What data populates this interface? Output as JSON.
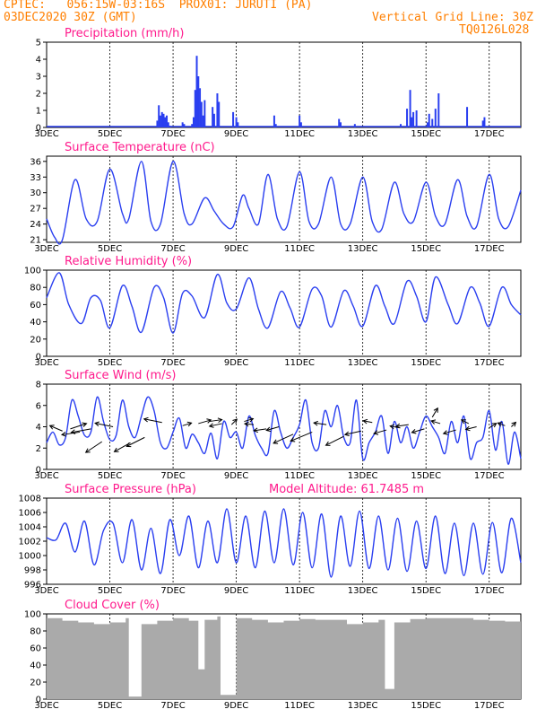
{
  "header": {
    "line1_left": "CPTEC:",
    "coords": "056:15W-03:16S",
    "location": "PROX01: JURUTI (PA)",
    "init": "03DEC2020 30Z (GMT)",
    "grid_note": "Vertical Grid Line: 30Z",
    "code": "TQ0126L028"
  },
  "date_axis": {
    "labels": [
      "3DEC",
      "5DEC",
      "7DEC",
      "9DEC",
      "11DEC",
      "13DEC",
      "15DEC",
      "17DEC"
    ],
    "start_day": 3,
    "end_day": 18
  },
  "colors": {
    "line": "#2a3ff0",
    "title": "#ff1a8c",
    "header": "#ff7f00",
    "cloud": "#aaaaaa"
  },
  "chart_data": [
    {
      "type": "bar",
      "title": "Precipitation (mm/h)",
      "ylim": [
        0,
        5
      ],
      "yticks": [
        0,
        1,
        2,
        3,
        4,
        5
      ],
      "x": [
        6.5,
        6.55,
        6.6,
        6.65,
        6.7,
        6.75,
        6.8,
        6.85,
        6.9,
        7.3,
        7.35,
        7.6,
        7.65,
        7.7,
        7.75,
        7.8,
        7.85,
        7.9,
        7.95,
        8.0,
        8.25,
        8.3,
        8.4,
        8.45,
        8.9,
        9.0,
        9.05,
        10.2,
        10.25,
        11.0,
        11.05,
        12.25,
        12.3,
        12.75,
        14.2,
        14.4,
        14.5,
        14.55,
        14.6,
        14.7,
        15.05,
        15.1,
        15.2,
        15.3,
        15.4,
        16.3,
        16.8,
        16.85
      ],
      "values": [
        0.4,
        1.3,
        0.7,
        0.9,
        0.8,
        0.6,
        0.7,
        0.3,
        0.1,
        0.3,
        0.2,
        0.2,
        0.6,
        2.2,
        4.2,
        3.0,
        2.3,
        1.5,
        0.7,
        1.6,
        1.2,
        0.8,
        2.0,
        1.5,
        0.9,
        0.6,
        0.3,
        0.7,
        0.2,
        0.7,
        0.3,
        0.5,
        0.3,
        0.2,
        0.2,
        1.1,
        2.2,
        0.6,
        0.9,
        1.0,
        0.3,
        0.8,
        0.5,
        1.1,
        2.0,
        1.2,
        0.4,
        0.6
      ]
    },
    {
      "type": "line",
      "title": "Surface Temperature (nC)",
      "ylim": [
        20.5,
        37
      ],
      "yticks": [
        21,
        24,
        27,
        30,
        33,
        36
      ],
      "x": [
        3.0,
        3.25,
        3.5,
        3.9,
        4.25,
        4.6,
        5.0,
        5.4,
        5.6,
        6.0,
        6.3,
        6.6,
        7.0,
        7.35,
        7.6,
        8.0,
        8.3,
        8.6,
        8.9,
        9.2,
        9.4,
        9.7,
        10.0,
        10.3,
        10.6,
        11.0,
        11.3,
        11.6,
        12.0,
        12.3,
        12.6,
        13.0,
        13.3,
        13.6,
        14.0,
        14.3,
        14.6,
        15.0,
        15.3,
        15.6,
        16.0,
        16.3,
        16.6,
        17.0,
        17.3,
        17.6,
        18.0
      ],
      "values": [
        25.0,
        21.5,
        21.0,
        32.5,
        25.0,
        24.5,
        34.5,
        26.0,
        25.0,
        36.0,
        24.5,
        24.0,
        36.0,
        26.0,
        24.0,
        29.0,
        26.5,
        24.0,
        23.5,
        29.5,
        27.0,
        24.0,
        33.5,
        25.0,
        23.5,
        34.0,
        24.5,
        24.0,
        33.0,
        24.0,
        24.0,
        33.0,
        24.5,
        23.0,
        32.0,
        26.0,
        24.5,
        32.0,
        25.5,
        24.0,
        32.5,
        25.5,
        23.5,
        33.5,
        25.0,
        23.5,
        30.5
      ]
    },
    {
      "type": "line",
      "title": "Relative Humidity (%)",
      "ylim": [
        0,
        100
      ],
      "yticks": [
        0,
        20,
        40,
        60,
        80,
        100
      ],
      "x": [
        3.0,
        3.4,
        3.7,
        4.1,
        4.4,
        4.7,
        5.0,
        5.4,
        5.7,
        6.0,
        6.4,
        6.7,
        7.0,
        7.3,
        7.6,
        8.0,
        8.4,
        8.7,
        9.0,
        9.4,
        9.7,
        10.0,
        10.4,
        10.7,
        11.0,
        11.4,
        11.7,
        12.0,
        12.4,
        12.7,
        13.0,
        13.4,
        13.7,
        14.0,
        14.4,
        14.7,
        15.0,
        15.3,
        15.7,
        16.0,
        16.4,
        16.7,
        17.0,
        17.4,
        17.7,
        18.0
      ],
      "values": [
        68.0,
        97.0,
        60.0,
        38.0,
        68.0,
        65.0,
        33.0,
        82.0,
        58.0,
        28.0,
        80.0,
        68.0,
        27.0,
        73.0,
        70.0,
        45.0,
        95.0,
        62.0,
        55.0,
        91.0,
        55.0,
        33.0,
        75.0,
        56.0,
        34.0,
        78.0,
        70.0,
        34.0,
        76.0,
        58.0,
        35.0,
        82.0,
        58.0,
        38.0,
        87.0,
        70.0,
        40.0,
        92.0,
        60.0,
        38.0,
        80.0,
        62.0,
        35.0,
        80.0,
        60.0,
        48.0
      ]
    },
    {
      "type": "line",
      "title": "Surface Wind (m/s)",
      "ylim": [
        0,
        8
      ],
      "yticks": [
        0,
        2,
        4,
        6,
        8
      ],
      "x": [
        3.0,
        3.2,
        3.4,
        3.6,
        3.8,
        4.0,
        4.2,
        4.4,
        4.6,
        4.8,
        5.0,
        5.2,
        5.4,
        5.6,
        5.8,
        6.0,
        6.2,
        6.4,
        6.6,
        6.8,
        7.0,
        7.2,
        7.4,
        7.6,
        7.8,
        8.0,
        8.2,
        8.4,
        8.6,
        8.8,
        9.0,
        9.2,
        9.4,
        9.6,
        9.8,
        10.0,
        10.2,
        10.4,
        10.6,
        10.8,
        11.0,
        11.2,
        11.4,
        11.6,
        11.8,
        12.0,
        12.2,
        12.4,
        12.6,
        12.8,
        13.0,
        13.2,
        13.4,
        13.6,
        13.8,
        14.0,
        14.2,
        14.4,
        14.6,
        14.8,
        15.0,
        15.2,
        15.4,
        15.6,
        15.8,
        16.0,
        16.2,
        16.4,
        16.6,
        16.8,
        17.0,
        17.2,
        17.4,
        17.6,
        17.8,
        18.0
      ],
      "values": [
        2.5,
        3.5,
        2.3,
        3.0,
        6.5,
        5.0,
        3.2,
        3.5,
        6.8,
        4.5,
        2.8,
        3.2,
        6.5,
        4.0,
        3.0,
        5.0,
        6.8,
        5.5,
        2.5,
        2.0,
        3.5,
        4.8,
        2.0,
        3.3,
        2.5,
        1.5,
        3.4,
        1.0,
        4.5,
        3.0,
        3.5,
        2.0,
        5.0,
        3.2,
        2.0,
        1.5,
        5.5,
        3.5,
        2.0,
        3.0,
        4.2,
        6.5,
        2.5,
        2.0,
        5.5,
        4.0,
        6.0,
        3.0,
        2.5,
        6.5,
        1.0,
        2.5,
        3.5,
        5.0,
        1.5,
        4.5,
        2.5,
        4.0,
        2.0,
        3.5,
        5.0,
        4.0,
        3.0,
        1.5,
        4.5,
        2.5,
        5.0,
        1.0,
        2.5,
        3.0,
        5.5,
        1.8,
        4.5,
        0.5,
        3.5,
        1.0
      ],
      "arrows": [
        {
          "x": 3.5,
          "y": 3.6,
          "dx": -14,
          "dy": -6
        },
        {
          "x": 3.75,
          "y": 3.8,
          "dx": 18,
          "dy": -6
        },
        {
          "x": 4.05,
          "y": 3.5,
          "dx": -20,
          "dy": 3
        },
        {
          "x": 4.4,
          "y": 3.8,
          "dx": -22,
          "dy": 4
        },
        {
          "x": 4.75,
          "y": 2.6,
          "dx": -18,
          "dy": 12
        },
        {
          "x": 5.1,
          "y": 4.0,
          "dx": -20,
          "dy": -4
        },
        {
          "x": 5.65,
          "y": 2.5,
          "dx": -18,
          "dy": 10
        },
        {
          "x": 6.1,
          "y": 3.0,
          "dx": -20,
          "dy": 10
        },
        {
          "x": 6.65,
          "y": 4.4,
          "dx": -20,
          "dy": -4
        },
        {
          "x": 7.3,
          "y": 4.1,
          "dx": 10,
          "dy": -3
        },
        {
          "x": 7.8,
          "y": 4.3,
          "dx": 14,
          "dy": -4
        },
        {
          "x": 8.15,
          "y": 4.5,
          "dx": 14,
          "dy": -2
        },
        {
          "x": 8.55,
          "y": 4.3,
          "dx": -14,
          "dy": 3
        },
        {
          "x": 8.85,
          "y": 4.2,
          "dx": 6,
          "dy": -6
        },
        {
          "x": 9.25,
          "y": 4.5,
          "dx": 10,
          "dy": -3
        },
        {
          "x": 9.55,
          "y": 4.2,
          "dx": -10,
          "dy": -1
        },
        {
          "x": 9.95,
          "y": 3.8,
          "dx": -14,
          "dy": 2
        },
        {
          "x": 10.35,
          "y": 4.0,
          "dx": -14,
          "dy": 4
        },
        {
          "x": 10.8,
          "y": 3.3,
          "dx": -22,
          "dy": 10
        },
        {
          "x": 11.4,
          "y": 3.5,
          "dx": -24,
          "dy": 10
        },
        {
          "x": 11.85,
          "y": 4.2,
          "dx": -14,
          "dy": -2
        },
        {
          "x": 12.4,
          "y": 3.1,
          "dx": -20,
          "dy": 10
        },
        {
          "x": 12.95,
          "y": 3.6,
          "dx": -18,
          "dy": 4
        },
        {
          "x": 13.3,
          "y": 4.4,
          "dx": -10,
          "dy": -2
        },
        {
          "x": 13.75,
          "y": 3.7,
          "dx": -14,
          "dy": 4
        },
        {
          "x": 14.15,
          "y": 3.9,
          "dx": -10,
          "dy": -2
        },
        {
          "x": 14.45,
          "y": 4.2,
          "dx": -14,
          "dy": 2
        },
        {
          "x": 14.95,
          "y": 3.8,
          "dx": -14,
          "dy": 4
        },
        {
          "x": 15.2,
          "y": 4.9,
          "dx": 6,
          "dy": -10
        },
        {
          "x": 15.45,
          "y": 4.3,
          "dx": -10,
          "dy": -3
        },
        {
          "x": 15.95,
          "y": 3.7,
          "dx": -14,
          "dy": 4
        },
        {
          "x": 16.35,
          "y": 4.3,
          "dx": -8,
          "dy": -4
        },
        {
          "x": 16.6,
          "y": 4.0,
          "dx": -12,
          "dy": 3
        },
        {
          "x": 17.0,
          "y": 3.9,
          "dx": 8,
          "dy": -5
        },
        {
          "x": 17.5,
          "y": 4.1,
          "dx": -8,
          "dy": -3
        },
        {
          "x": 17.7,
          "y": 4.0,
          "dx": 5,
          "dy": -5
        }
      ]
    },
    {
      "type": "line",
      "title": "Surface Pressure (hPa)",
      "note": "Model Altitude: 61.7485 m",
      "ylim": [
        996,
        1008
      ],
      "yticks": [
        996,
        998,
        1000,
        1002,
        1004,
        1006,
        1008
      ],
      "x": [
        3.0,
        3.3,
        3.6,
        3.9,
        4.2,
        4.5,
        4.8,
        5.1,
        5.4,
        5.7,
        6.0,
        6.3,
        6.6,
        6.9,
        7.2,
        7.5,
        7.8,
        8.1,
        8.4,
        8.7,
        9.0,
        9.3,
        9.6,
        9.9,
        10.2,
        10.5,
        10.8,
        11.1,
        11.4,
        11.7,
        12.0,
        12.3,
        12.6,
        12.9,
        13.2,
        13.5,
        13.8,
        14.1,
        14.4,
        14.7,
        15.0,
        15.3,
        15.6,
        15.9,
        16.2,
        16.5,
        16.8,
        17.1,
        17.4,
        17.7,
        18.0
      ],
      "values": [
        1002.5,
        1002.2,
        1004.5,
        1000.5,
        1004.8,
        998.7,
        1003.5,
        1004.5,
        999.0,
        1005.0,
        998.0,
        1003.8,
        997.5,
        1005.0,
        1000.0,
        1005.5,
        998.3,
        1004.8,
        999.0,
        1006.5,
        999.0,
        1005.5,
        998.3,
        1006.2,
        999.0,
        1006.5,
        998.7,
        1006.0,
        998.3,
        1005.8,
        997.0,
        1005.5,
        998.5,
        1006.2,
        998.2,
        1005.5,
        998.0,
        1005.2,
        997.8,
        1004.8,
        998.2,
        1005.5,
        997.5,
        1004.5,
        997.2,
        1004.5,
        997.4,
        1004.6,
        997.6,
        1005.2,
        999.0
      ]
    },
    {
      "type": "bar",
      "title": "Cloud Cover (%)",
      "ylim": [
        0,
        100
      ],
      "yticks": [
        0,
        20,
        40,
        60,
        80,
        100
      ],
      "x": [
        3.0,
        3.5,
        4.0,
        4.5,
        5.0,
        5.5,
        5.6,
        6.0,
        6.5,
        7.0,
        7.5,
        7.8,
        8.0,
        8.4,
        8.5,
        9.0,
        9.5,
        10.0,
        10.5,
        11.0,
        11.5,
        12.0,
        12.5,
        13.0,
        13.5,
        13.7,
        14.0,
        14.5,
        15.0,
        15.5,
        16.0,
        16.5,
        17.0,
        17.5,
        18.0
      ],
      "values": [
        95.0,
        92.0,
        90.0,
        88.0,
        90.0,
        95.0,
        3.0,
        88.0,
        92.0,
        95.0,
        92.0,
        35.0,
        93.0,
        97.0,
        5.0,
        95.0,
        93.0,
        90.0,
        92.0,
        94.0,
        93.0,
        93.0,
        88.0,
        90.0,
        93.0,
        12.0,
        90.0,
        94.0,
        95.0,
        95.0,
        95.0,
        93.0,
        92.0,
        91.0,
        90.0
      ]
    }
  ]
}
